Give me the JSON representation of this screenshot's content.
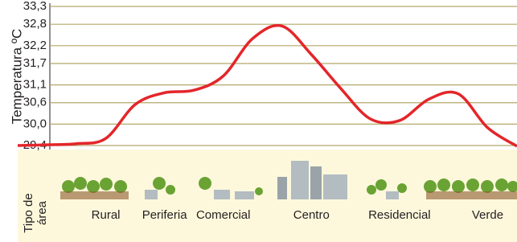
{
  "chart_data": {
    "type": "line",
    "y_label": "Temperatura ºC",
    "x_label": [
      "Tipo de",
      "área"
    ],
    "categories": [
      null,
      null,
      null,
      "Rural",
      null,
      "Periferia",
      null,
      "Comercial",
      null,
      null,
      "Centro",
      null,
      null,
      "Residencial",
      null,
      null,
      "Verde",
      null
    ],
    "series": [
      {
        "color": "#e3262a",
        "values": [
          29.4,
          29.42,
          29.45,
          29.6,
          30.55,
          30.88,
          30.95,
          31.35,
          32.4,
          32.75,
          31.95,
          31.0,
          30.15,
          30.1,
          30.7,
          30.85,
          29.9,
          29.38
        ]
      }
    ],
    "ylim": [
      29.4,
      33.3
    ],
    "yticks": [
      {
        "value": 29.4,
        "label": "29,4"
      },
      {
        "value": 30.0,
        "label": "30,0"
      },
      {
        "value": 30.6,
        "label": "30,6"
      },
      {
        "value": 31.1,
        "label": "31,1"
      },
      {
        "value": 31.7,
        "label": "31,7"
      },
      {
        "value": 32.2,
        "label": "32,2"
      },
      {
        "value": 32.8,
        "label": "32,8"
      },
      {
        "value": 33.3,
        "label": "33,3"
      }
    ],
    "grid": true,
    "grid_color": "#b5a86a"
  }
}
